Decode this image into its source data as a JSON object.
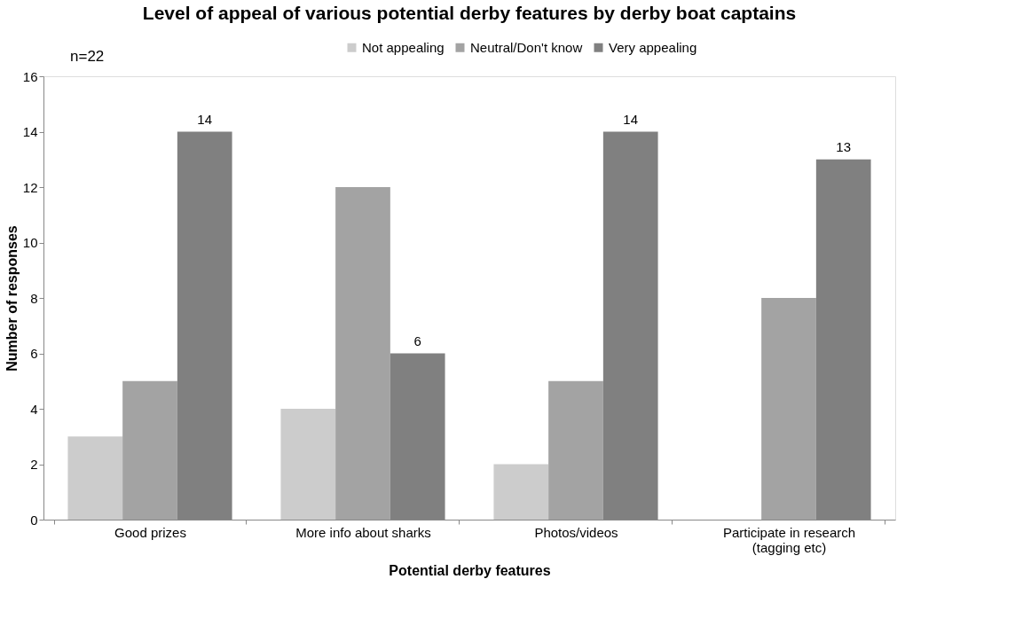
{
  "chart_data": {
    "type": "bar",
    "title": "Level of appeal of various potential derby features by derby boat captains",
    "xlabel": "Potential derby features",
    "ylabel": "Number of responses",
    "annotations": [
      "n=22"
    ],
    "categories": [
      "Good prizes",
      "More info about sharks",
      "Photos/videos",
      "Participate in research (tagging etc)"
    ],
    "series": [
      {
        "name": "Not appealing",
        "color": "#cccccc",
        "values": [
          3,
          4,
          2,
          0
        ]
      },
      {
        "name": "Neutral/Don't know",
        "color": "#a3a3a3",
        "values": [
          5,
          12,
          5,
          8
        ]
      },
      {
        "name": "Very appealing",
        "color": "#808080",
        "values": [
          14,
          6,
          14,
          13
        ],
        "value_labels": [
          "14",
          "6",
          "14",
          "13"
        ]
      }
    ],
    "ylim": [
      0,
      16
    ],
    "yticks": [
      0,
      2,
      4,
      6,
      8,
      10,
      12,
      14,
      16
    ],
    "grid": false,
    "legend": "top"
  }
}
